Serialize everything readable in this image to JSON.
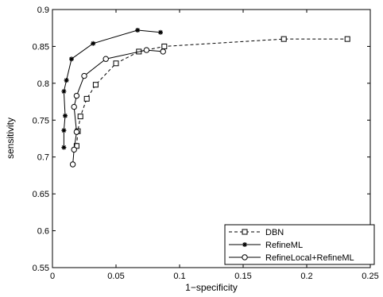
{
  "chart_data": {
    "type": "line",
    "title": "",
    "xlabel": "1−specificity",
    "ylabel": "sensitivity",
    "xlim": [
      0,
      0.25
    ],
    "ylim": [
      0.55,
      0.9
    ],
    "x_ticks": [
      0,
      0.05,
      0.1,
      0.15,
      0.2,
      0.25
    ],
    "x_tick_labels": [
      "0",
      "0.05",
      "0.1",
      "0.15",
      "0.2",
      "0.25"
    ],
    "y_ticks": [
      0.55,
      0.6,
      0.65,
      0.7,
      0.75,
      0.8,
      0.85,
      0.9
    ],
    "y_tick_labels": [
      "0.55",
      "0.6",
      "0.65",
      "0.7",
      "0.75",
      "0.8",
      "0.85",
      "0.9"
    ],
    "grid": false,
    "legend_position": "bottom-right",
    "series": [
      {
        "name": "DBN",
        "line_style": "dashed",
        "marker": "square",
        "color": "#000000",
        "points": [
          [
            0.019,
            0.715
          ],
          [
            0.02,
            0.735
          ],
          [
            0.022,
            0.755
          ],
          [
            0.027,
            0.779
          ],
          [
            0.034,
            0.798
          ],
          [
            0.05,
            0.827
          ],
          [
            0.068,
            0.843
          ],
          [
            0.088,
            0.85
          ],
          [
            0.182,
            0.86
          ],
          [
            0.232,
            0.86
          ]
        ]
      },
      {
        "name": "RefineML",
        "line_style": "solid",
        "marker": "star",
        "color": "#000000",
        "points": [
          [
            0.009,
            0.713
          ],
          [
            0.009,
            0.736
          ],
          [
            0.01,
            0.756
          ],
          [
            0.009,
            0.789
          ],
          [
            0.011,
            0.804
          ],
          [
            0.015,
            0.833
          ],
          [
            0.032,
            0.854
          ],
          [
            0.067,
            0.872
          ],
          [
            0.085,
            0.869
          ]
        ]
      },
      {
        "name": "RefineLocal+RefineML",
        "line_style": "solid",
        "marker": "circle",
        "color": "#000000",
        "points": [
          [
            0.016,
            0.69
          ],
          [
            0.017,
            0.71
          ],
          [
            0.019,
            0.734
          ],
          [
            0.017,
            0.768
          ],
          [
            0.019,
            0.783
          ],
          [
            0.025,
            0.81
          ],
          [
            0.042,
            0.833
          ],
          [
            0.074,
            0.845
          ],
          [
            0.087,
            0.843
          ]
        ]
      }
    ]
  }
}
